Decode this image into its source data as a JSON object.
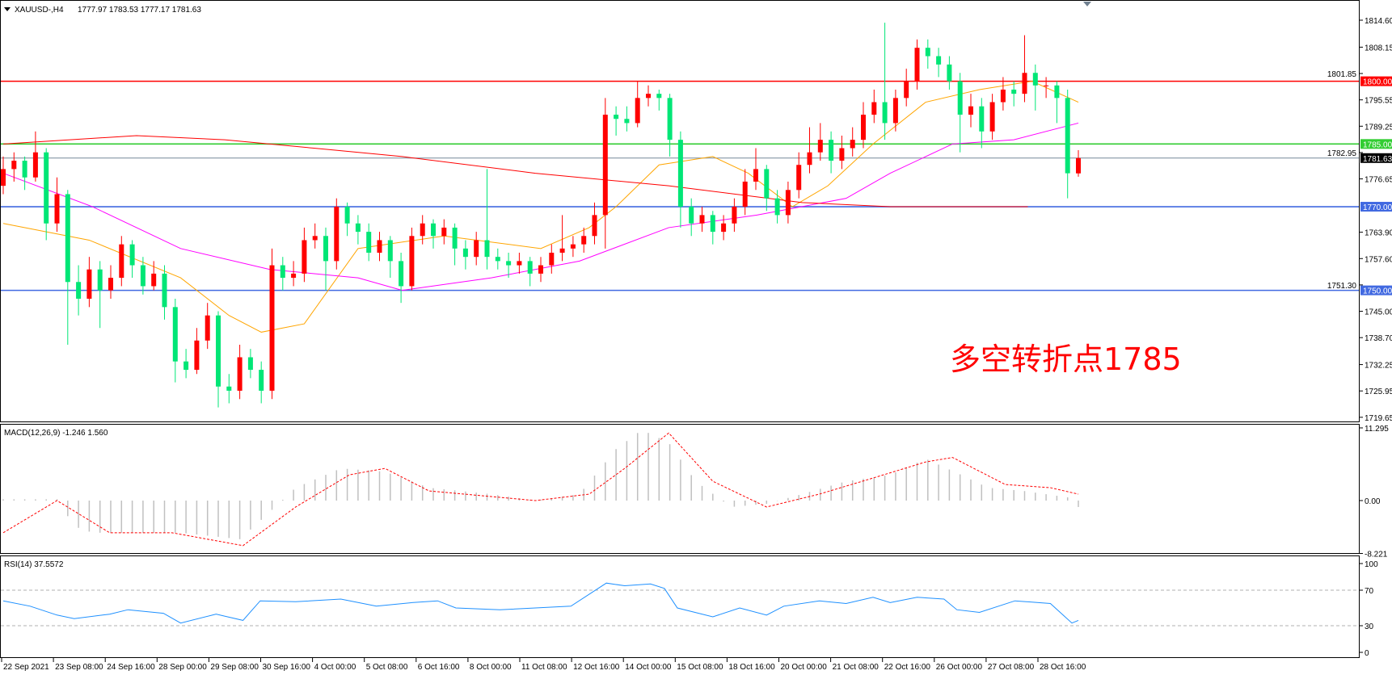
{
  "header": {
    "symbol": "XAUUSD-,H4",
    "ohlc": "1777.97 1783.53 1777.17 1781.63"
  },
  "annotation": "多空转折点1785",
  "colors": {
    "bull": "#ff0000",
    "bear": "#00e676",
    "ma_fast": "#ffa500",
    "ma_mid": "#ff00ff",
    "ma_slow": "#ff0000",
    "macd_hist": "#c0c0c0",
    "macd_signal": "#ff0000",
    "rsi": "#1e90ff"
  },
  "chart_data": [
    {
      "type": "candlestick",
      "title": "XAUUSD-,H4",
      "ylim": [
        1719.65,
        1814.6
      ],
      "price_ticks": [
        "1814.60",
        "1808.15",
        "1801.85",
        "1795.55",
        "1789.25",
        "1782.95",
        "1776.65",
        "1763.90",
        "1757.60",
        "1751.30",
        "1745.00",
        "1738.70",
        "1732.25",
        "1725.95",
        "1719.65"
      ],
      "time_ticks": [
        "22 Sep 2021",
        "23 Sep 08:00",
        "24 Sep 16:00",
        "28 Sep 00:00",
        "29 Sep 08:00",
        "30 Sep 16:00",
        "4 Oct 00:00",
        "5 Oct 08:00",
        "6 Oct 16:00",
        "8 Oct 00:00",
        "11 Oct 08:00",
        "12 Oct 16:00",
        "14 Oct 00:00",
        "15 Oct 08:00",
        "18 Oct 16:00",
        "20 Oct 00:00",
        "21 Oct 08:00",
        "22 Oct 16:00",
        "26 Oct 00:00",
        "27 Oct 08:00",
        "28 Oct 16:00"
      ],
      "hlines": [
        {
          "value": 1800.0,
          "label": "1800.00",
          "color": "#ff0000"
        },
        {
          "value": 1785.0,
          "label": "1785.00",
          "color": "#32cd32"
        },
        {
          "value": 1770.0,
          "label": "1770.00",
          "color": "#4169e1"
        },
        {
          "value": 1750.0,
          "label": "1750.00",
          "color": "#4169e1"
        },
        {
          "value": 1781.63,
          "label": "1781.63",
          "color": "#000000",
          "line": "#778899"
        }
      ],
      "ohlc": [
        [
          1775,
          1782,
          1773,
          1779
        ],
        [
          1779,
          1783,
          1776,
          1781
        ],
        [
          1781,
          1782,
          1774,
          1777
        ],
        [
          1777,
          1788,
          1776,
          1783
        ],
        [
          1783,
          1784,
          1762,
          1766
        ],
        [
          1766,
          1777,
          1764,
          1773
        ],
        [
          1773,
          1774,
          1737,
          1752
        ],
        [
          1752,
          1756,
          1744,
          1748
        ],
        [
          1748,
          1758,
          1746,
          1755
        ],
        [
          1755,
          1757,
          1741,
          1750
        ],
        [
          1750,
          1756,
          1748,
          1753
        ],
        [
          1753,
          1763,
          1751,
          1761
        ],
        [
          1761,
          1762,
          1753,
          1756
        ],
        [
          1756,
          1758,
          1749,
          1751
        ],
        [
          1751,
          1757,
          1750,
          1754
        ],
        [
          1754,
          1756,
          1743,
          1746
        ],
        [
          1746,
          1748,
          1728,
          1733
        ],
        [
          1733,
          1736,
          1729,
          1731
        ],
        [
          1731,
          1741,
          1730,
          1738
        ],
        [
          1738,
          1747,
          1736,
          1744
        ],
        [
          1744,
          1745,
          1722,
          1727
        ],
        [
          1727,
          1730,
          1723,
          1726
        ],
        [
          1726,
          1737,
          1724,
          1734
        ],
        [
          1734,
          1736,
          1729,
          1731
        ],
        [
          1731,
          1733,
          1723,
          1726
        ],
        [
          1726,
          1760,
          1724,
          1756
        ],
        [
          1756,
          1758,
          1750,
          1753
        ],
        [
          1753,
          1757,
          1751,
          1754
        ],
        [
          1754,
          1765,
          1752,
          1762
        ],
        [
          1762,
          1766,
          1760,
          1763
        ],
        [
          1763,
          1765,
          1750,
          1757
        ],
        [
          1757,
          1772,
          1755,
          1770
        ],
        [
          1770,
          1771,
          1763,
          1766
        ],
        [
          1766,
          1768,
          1761,
          1764
        ],
        [
          1764,
          1766,
          1757,
          1759
        ],
        [
          1759,
          1764,
          1757,
          1762
        ],
        [
          1762,
          1763,
          1753,
          1757
        ],
        [
          1757,
          1759,
          1747,
          1751
        ],
        [
          1751,
          1765,
          1750,
          1763
        ],
        [
          1763,
          1768,
          1761,
          1766
        ],
        [
          1766,
          1767,
          1760,
          1763
        ],
        [
          1763,
          1767,
          1761,
          1765
        ],
        [
          1765,
          1766,
          1756,
          1760
        ],
        [
          1760,
          1762,
          1755,
          1758
        ],
        [
          1758,
          1764,
          1756,
          1762
        ],
        [
          1762,
          1779,
          1755,
          1758
        ],
        [
          1758,
          1760,
          1755,
          1757
        ],
        [
          1757,
          1759,
          1753,
          1756
        ],
        [
          1756,
          1759,
          1754,
          1757
        ],
        [
          1757,
          1758,
          1751,
          1754
        ],
        [
          1754,
          1758,
          1752,
          1756
        ],
        [
          1756,
          1761,
          1754,
          1759
        ],
        [
          1759,
          1768,
          1757,
          1760
        ],
        [
          1760,
          1763,
          1758,
          1761
        ],
        [
          1761,
          1765,
          1759,
          1763
        ],
        [
          1763,
          1771,
          1761,
          1768
        ],
        [
          1768,
          1796,
          1760,
          1792
        ],
        [
          1792,
          1794,
          1787,
          1791
        ],
        [
          1791,
          1794,
          1788,
          1790
        ],
        [
          1790,
          1800,
          1789,
          1796
        ],
        [
          1796,
          1799,
          1794,
          1797
        ],
        [
          1797,
          1798,
          1793,
          1796
        ],
        [
          1796,
          1797,
          1782,
          1786
        ],
        [
          1786,
          1788,
          1765,
          1770
        ],
        [
          1770,
          1772,
          1763,
          1766
        ],
        [
          1766,
          1770,
          1764,
          1768
        ],
        [
          1768,
          1769,
          1761,
          1764
        ],
        [
          1764,
          1768,
          1762,
          1766
        ],
        [
          1766,
          1772,
          1764,
          1770
        ],
        [
          1770,
          1779,
          1768,
          1776
        ],
        [
          1776,
          1784,
          1774,
          1779
        ],
        [
          1779,
          1780,
          1769,
          1772
        ],
        [
          1772,
          1774,
          1766,
          1768
        ],
        [
          1768,
          1776,
          1766,
          1774
        ],
        [
          1774,
          1783,
          1772,
          1780
        ],
        [
          1780,
          1789,
          1778,
          1783
        ],
        [
          1783,
          1790,
          1781,
          1786
        ],
        [
          1786,
          1788,
          1778,
          1781
        ],
        [
          1781,
          1787,
          1779,
          1784
        ],
        [
          1784,
          1789,
          1782,
          1786
        ],
        [
          1786,
          1795,
          1784,
          1792
        ],
        [
          1792,
          1798,
          1790,
          1795
        ],
        [
          1795,
          1814,
          1786,
          1790
        ],
        [
          1790,
          1798,
          1788,
          1796
        ],
        [
          1796,
          1803,
          1794,
          1800
        ],
        [
          1800,
          1810,
          1798,
          1808
        ],
        [
          1808,
          1810,
          1803,
          1806
        ],
        [
          1806,
          1808,
          1801,
          1804
        ],
        [
          1804,
          1806,
          1798,
          1800
        ],
        [
          1800,
          1802,
          1783,
          1792
        ],
        [
          1792,
          1797,
          1789,
          1794
        ],
        [
          1794,
          1796,
          1784,
          1788
        ],
        [
          1788,
          1797,
          1786,
          1795
        ],
        [
          1795,
          1801,
          1793,
          1798
        ],
        [
          1798,
          1800,
          1794,
          1797
        ],
        [
          1797,
          1811,
          1795,
          1802
        ],
        [
          1802,
          1804,
          1793,
          1799
        ],
        [
          1799,
          1801,
          1796,
          1799
        ],
        [
          1799,
          1800,
          1790,
          1796
        ],
        [
          1796,
          1798,
          1772,
          1778
        ],
        [
          1777.97,
          1783.53,
          1777.17,
          1781.63
        ]
      ],
      "moving_averages": [
        {
          "color": "#ffa500",
          "points": [
            [
              0,
              1766
            ],
            [
              8,
              1762
            ],
            [
              16.5,
              1753
            ],
            [
              21,
              1744
            ],
            [
              24,
              1740
            ],
            [
              28,
              1742
            ],
            [
              33,
              1760
            ],
            [
              41,
              1763
            ],
            [
              50,
              1760
            ],
            [
              54.5,
              1765
            ],
            [
              57,
              1770
            ],
            [
              61,
              1780
            ],
            [
              66,
              1782
            ],
            [
              69.3,
              1778
            ],
            [
              73.4,
              1770
            ],
            [
              76.7,
              1775
            ],
            [
              80.9,
              1785
            ],
            [
              85.8,
              1795
            ],
            [
              90.8,
              1798
            ],
            [
              95.7,
              1800
            ],
            [
              100,
              1795
            ]
          ]
        },
        {
          "color": "#ff00ff",
          "points": [
            [
              0,
              1778
            ],
            [
              8.3,
              1770
            ],
            [
              16.5,
              1760
            ],
            [
              24.8,
              1755
            ],
            [
              33,
              1753
            ],
            [
              37.1,
              1750
            ],
            [
              45.4,
              1753
            ],
            [
              53.6,
              1757
            ],
            [
              61.9,
              1765
            ],
            [
              70.1,
              1768
            ],
            [
              78.4,
              1772
            ],
            [
              82.5,
              1778
            ],
            [
              88.3,
              1785
            ],
            [
              94,
              1786
            ],
            [
              100,
              1790
            ]
          ]
        },
        {
          "color": "#ff0000",
          "points": [
            [
              0,
              1785
            ],
            [
              12.4,
              1787
            ],
            [
              20.6,
              1786
            ],
            [
              28.9,
              1784
            ],
            [
              37.1,
              1782
            ],
            [
              49.5,
              1778
            ],
            [
              61.9,
              1775
            ],
            [
              74.3,
              1771
            ],
            [
              82.5,
              1770
            ],
            [
              95.3,
              1770
            ]
          ]
        }
      ]
    },
    {
      "type": "bar",
      "title": "MACD(12,26,9) -1.246 1.560",
      "ylim": [
        -8.221,
        11.295
      ],
      "ticks": [
        "11.295",
        "0.00",
        "-8.221"
      ],
      "histogram": [
        [
          0,
          0.2
        ],
        [
          5,
          0.2
        ],
        [
          6.6,
          -4
        ],
        [
          8.3,
          -5
        ],
        [
          16.5,
          -5
        ],
        [
          22,
          -6
        ],
        [
          24,
          -3
        ],
        [
          27.2,
          2
        ],
        [
          31.4,
          5
        ],
        [
          35.5,
          4.5
        ],
        [
          39.6,
          2
        ],
        [
          45.4,
          1
        ],
        [
          49.5,
          0
        ],
        [
          53.6,
          1
        ],
        [
          57,
          8
        ],
        [
          59.4,
          11
        ],
        [
          61.9,
          9
        ],
        [
          64.4,
          3
        ],
        [
          67.7,
          -1
        ],
        [
          71,
          -0.5
        ],
        [
          74.3,
          1
        ],
        [
          78.4,
          3
        ],
        [
          82.5,
          4
        ],
        [
          85.8,
          6.5
        ],
        [
          89.1,
          4
        ],
        [
          91.6,
          2
        ],
        [
          94.9,
          1.5
        ],
        [
          99,
          0.5
        ],
        [
          100,
          -1
        ]
      ],
      "signal": [
        [
          0,
          -5
        ],
        [
          5,
          0
        ],
        [
          9.9,
          -5
        ],
        [
          15.7,
          -5
        ],
        [
          22.3,
          -7
        ],
        [
          27.2,
          -1
        ],
        [
          32.2,
          4
        ],
        [
          35.5,
          5
        ],
        [
          39.6,
          1.5
        ],
        [
          49.5,
          0
        ],
        [
          54.5,
          1
        ],
        [
          57.8,
          5
        ],
        [
          61.9,
          10.5
        ],
        [
          66,
          3
        ],
        [
          71,
          -1
        ],
        [
          75.9,
          1
        ],
        [
          80.9,
          3.5
        ],
        [
          85.8,
          6
        ],
        [
          88.3,
          6.7
        ],
        [
          93.2,
          2.5
        ],
        [
          97.4,
          2
        ],
        [
          100,
          1
        ]
      ]
    },
    {
      "type": "line",
      "title": "RSI(14) 37.5572",
      "ylim": [
        0,
        100
      ],
      "ticks": [
        "100",
        "70",
        "30",
        "0"
      ],
      "levels": [
        70,
        30
      ],
      "values": [
        [
          0,
          58
        ],
        [
          2.5,
          52
        ],
        [
          5,
          42
        ],
        [
          6.6,
          38
        ],
        [
          9.9,
          43
        ],
        [
          11.6,
          48
        ],
        [
          14.9,
          44
        ],
        [
          16.5,
          33
        ],
        [
          19.8,
          43
        ],
        [
          22.3,
          36
        ],
        [
          23.9,
          58
        ],
        [
          27.2,
          57
        ],
        [
          31.4,
          60
        ],
        [
          34.7,
          52
        ],
        [
          38,
          56
        ],
        [
          40.4,
          58
        ],
        [
          42.1,
          50
        ],
        [
          46.2,
          48
        ],
        [
          49.5,
          50
        ],
        [
          52.8,
          52
        ],
        [
          56.1,
          78
        ],
        [
          57.8,
          75
        ],
        [
          60.2,
          77
        ],
        [
          61.5,
          72
        ],
        [
          62.7,
          50
        ],
        [
          66,
          40
        ],
        [
          68.5,
          50
        ],
        [
          71,
          42
        ],
        [
          72.6,
          52
        ],
        [
          75.9,
          58
        ],
        [
          78.4,
          55
        ],
        [
          80.9,
          62
        ],
        [
          82.5,
          56
        ],
        [
          85,
          62
        ],
        [
          87.5,
          60
        ],
        [
          88.7,
          48
        ],
        [
          90.8,
          45
        ],
        [
          94.1,
          58
        ],
        [
          97.4,
          55
        ],
        [
          99.4,
          33
        ],
        [
          100,
          36
        ]
      ]
    }
  ]
}
